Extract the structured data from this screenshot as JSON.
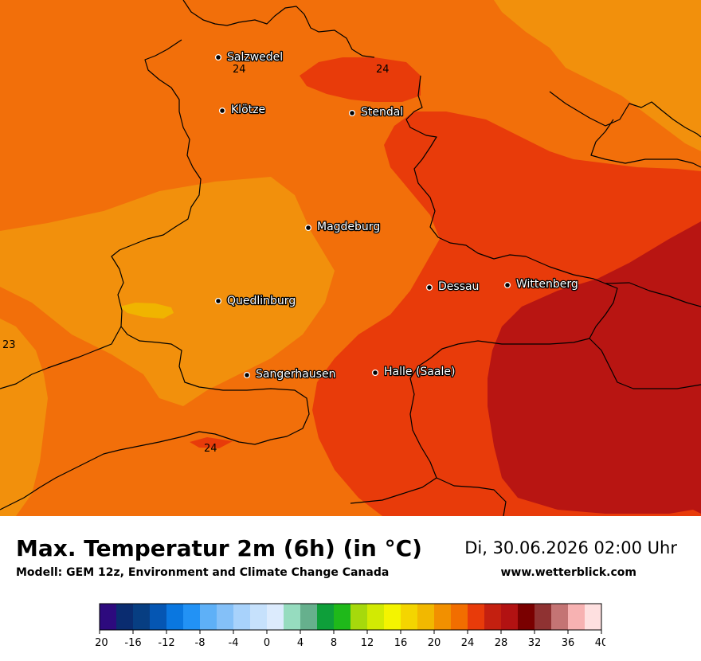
{
  "title": "Max. Temperatur 2m (6h) (in °C)",
  "model": "Modell: GEM 12z, Environment and Climate Change Canada",
  "datetime": "Di, 30.06.2026 02:00 Uhr",
  "website": "www.wetterblick.com",
  "cities": [
    {
      "name": "Salzwedel"
    },
    {
      "name": "Klötze"
    },
    {
      "name": "Stendal"
    },
    {
      "name": "Magdeburg"
    },
    {
      "name": "Dessau"
    },
    {
      "name": "Wittenberg"
    },
    {
      "name": "Quedlinburg"
    },
    {
      "name": "Sangerhausen"
    },
    {
      "name": "Halle (Saale)"
    }
  ],
  "isotherm_labels": [
    "24",
    "24",
    "23",
    "24"
  ],
  "colorbar": {
    "ticks": [
      "-20",
      "-16",
      "-12",
      "-8",
      "-4",
      "0",
      "4",
      "8",
      "12",
      "16",
      "20",
      "24",
      "28",
      "32",
      "36",
      "40"
    ],
    "colors": [
      "#2d0a7e",
      "#0a2c70",
      "#073e82",
      "#0556b3",
      "#0a77e0",
      "#2292f5",
      "#5eb0f7",
      "#84c0f8",
      "#a8d2fb",
      "#c6e1fc",
      "#dcebfd",
      "#96dcbf",
      "#66b08d",
      "#0e9f3a",
      "#1fb91a",
      "#a6d90c",
      "#d2ea03",
      "#f4f400",
      "#f4d500",
      "#f2b800",
      "#f29000",
      "#f26e00",
      "#e83b0a",
      "#c42010",
      "#b21212",
      "#7a0000",
      "#8f3232",
      "#c47474",
      "#f7b2b2",
      "#fee0e0"
    ]
  },
  "legend_colors": {
    "temp_23": "#f2900c",
    "temp_22": "#f0b400",
    "temp_24": "#f26f0a",
    "temp_26": "#e83b0a",
    "temp_28": "#b81512"
  }
}
